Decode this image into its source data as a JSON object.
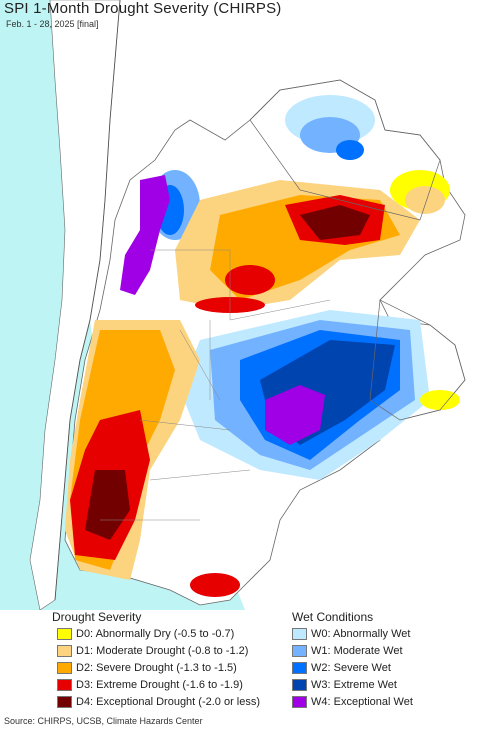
{
  "title": "SPI 1-Month Drought Severity (CHIRPS)",
  "subtitle": "Feb. 1 - 28, 2025 [final]",
  "colors": {
    "ocean": "#bff4f4",
    "land_outside": "#ffffff",
    "border": "#666666"
  },
  "legend": {
    "drought_heading": "Drought Severity",
    "wet_heading": "Wet Conditions",
    "drought_items": [
      {
        "label": "D0: Abnormally Dry (-0.5 to -0.7)",
        "color": "#ffff00"
      },
      {
        "label": "D1: Moderate Drought (-0.8 to -1.2)",
        "color": "#fcd37f"
      },
      {
        "label": "D2: Severe Drought (-1.3 to -1.5)",
        "color": "#ffaa00"
      },
      {
        "label": "D3: Extreme Drought (-1.6 to -1.9)",
        "color": "#e60000"
      },
      {
        "label": "D4: Exceptional Drought (-2.0 or less)",
        "color": "#730000"
      }
    ],
    "wet_items": [
      {
        "label": "W0: Abnormally Wet",
        "color": "#bfe9ff"
      },
      {
        "label": "W1: Moderate Wet",
        "color": "#73b2ff"
      },
      {
        "label": "W2: Severe Wet",
        "color": "#0070ff"
      },
      {
        "label": "W3: Extreme Wet",
        "color": "#0044b0"
      },
      {
        "label": "W4: Exceptional Wet",
        "color": "#a000e6"
      }
    ]
  },
  "source": "Source: CHIRPS, UCSB, Climate Hazards Center"
}
